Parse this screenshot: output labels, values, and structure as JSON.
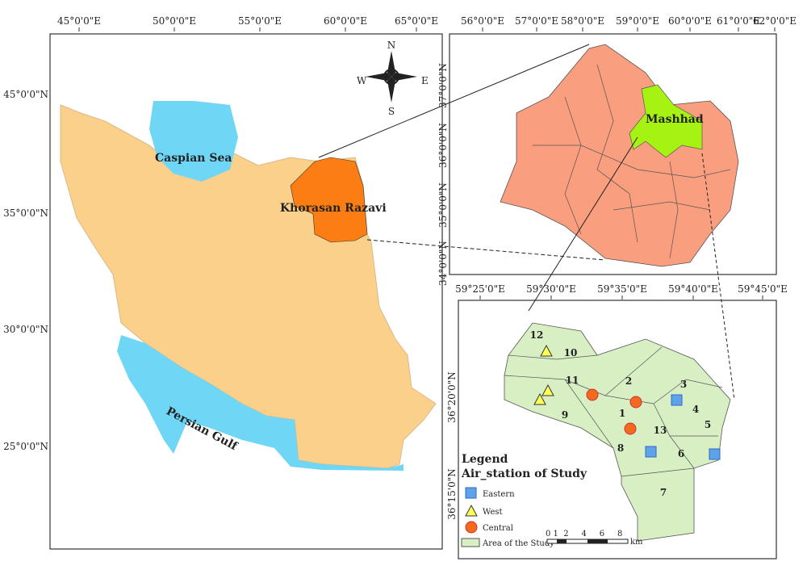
{
  "iran_map": {
    "x_labels": [
      "45°0'0\"E",
      "50°0'0\"E",
      "55°0'0\"E",
      "60°0'0\"E",
      "65°0'0\"E"
    ],
    "y_labels": [
      "45°0'0\"N",
      "35°0'0\"N",
      "30°0'0\"N",
      "25°0'0\"N"
    ],
    "places": [
      "Caspian Sea",
      "Khorasan Razavi",
      "Persian Gulf"
    ],
    "compass": [
      "N",
      "E",
      "S",
      "W"
    ]
  },
  "province_map": {
    "x_labels": [
      "56°0'0\"E",
      "57°0'0\"E",
      "58°0'0\"E",
      "59°0'0\"E",
      "60°0'0\"E",
      "61°0'0\"E",
      "62°0'0\"E"
    ],
    "y_labels": [
      "37°0'0\"N",
      "36°0'0\"N",
      "35°0'0\"N",
      "34°0'0\"N"
    ],
    "city": "Mashhad"
  },
  "city_map": {
    "x_labels": [
      "59°25'0\"E",
      "59°30'0\"E",
      "59°35'0\"E",
      "59°40'0\"E",
      "59°45'0\"E"
    ],
    "y_labels": [
      "36°20'0\"N",
      "36°15'0\"N"
    ],
    "districts": [
      "1",
      "2",
      "3",
      "4",
      "5",
      "6",
      "7",
      "8",
      "9",
      "10",
      "11",
      "12",
      "13"
    ],
    "legend": {
      "title": "Legend",
      "subtitle": "Air_station of Study",
      "items": [
        "Eastern",
        "West",
        "Central",
        "Area of the Study"
      ],
      "scale": "0 1  2     4     6     8",
      "unit": "km"
    }
  }
}
